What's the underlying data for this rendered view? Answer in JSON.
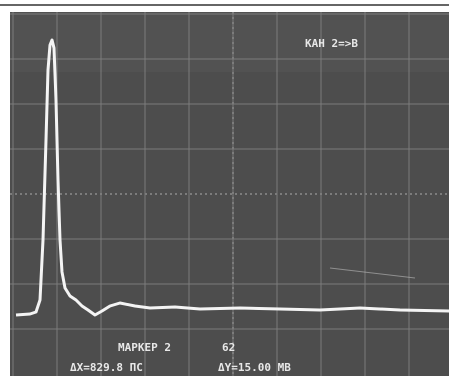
{
  "screen": {
    "channel": "КАН 2=>B",
    "marker": "МАРКЕР 2",
    "marker_value": "62",
    "delta_x": "ΔX=829.8 ПС",
    "delta_y": "ΔY=15.00 МВ"
  }
}
